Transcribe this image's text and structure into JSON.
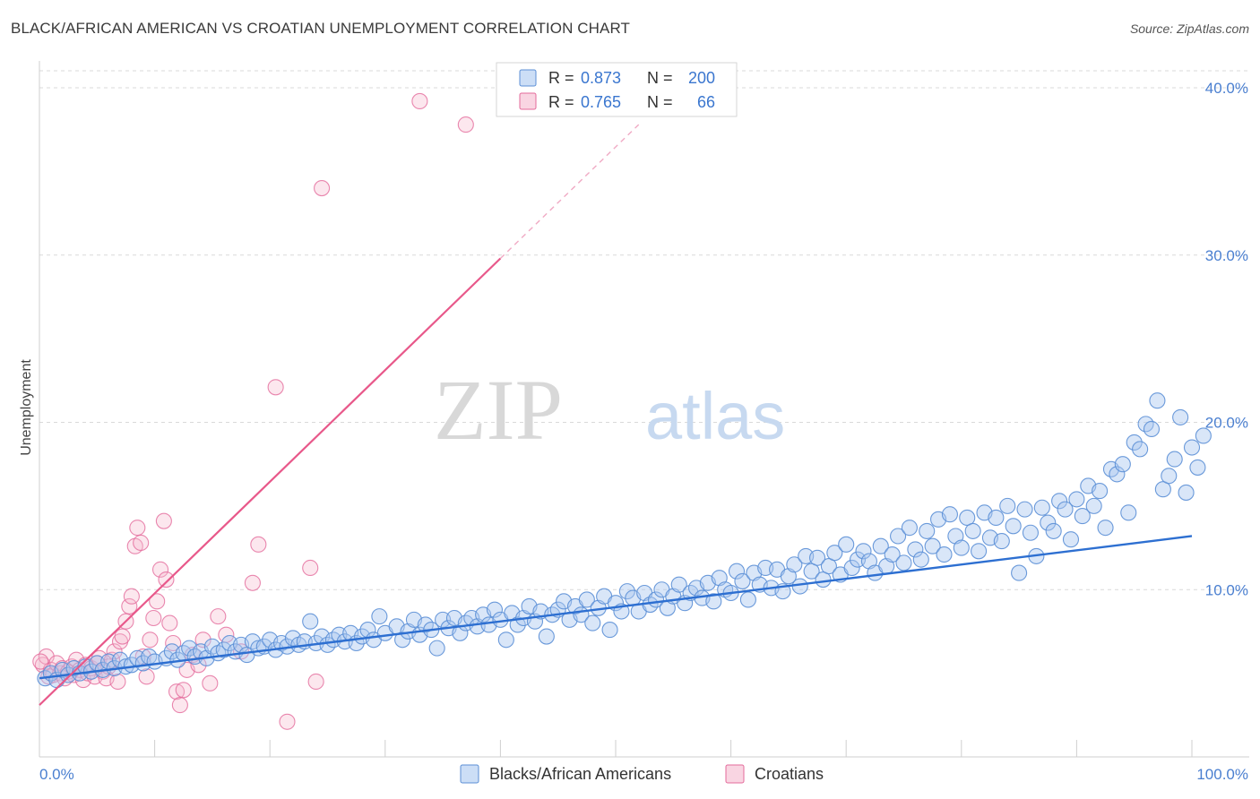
{
  "header": {
    "title": "BLACK/AFRICAN AMERICAN VS CROATIAN UNEMPLOYMENT CORRELATION CHART",
    "source": "Source: ZipAtlas.com"
  },
  "watermark": {
    "zip": "ZIP",
    "atlas": "atlas"
  },
  "colors": {
    "blue": "#5b8fd6",
    "blue_fill": "#aac8f0",
    "blue_line": "#2d6fd1",
    "pink": "#e46a9b",
    "pink_fill": "#f5b9cf",
    "pink_line": "#e8588a",
    "tick_label": "#4a7fd0",
    "grid": "#d9d9d9"
  },
  "chart_data": {
    "type": "scatter",
    "title": "BLACK/AFRICAN AMERICAN VS CROATIAN UNEMPLOYMENT CORRELATION CHART",
    "xlabel": "",
    "ylabel": "Unemployment",
    "xlim": [
      0,
      105
    ],
    "ylim": [
      0,
      41.5
    ],
    "x_tick_labels": [
      "0.0%",
      "100.0%"
    ],
    "y_ticks": [
      10,
      20,
      30,
      40
    ],
    "y_tick_labels": [
      "10.0%",
      "20.0%",
      "30.0%",
      "40.0%"
    ],
    "legend_position": "top-center",
    "stats": [
      {
        "r_label": "R =",
        "r_value": "0.873",
        "n_label": "N =",
        "n_value": "200"
      },
      {
        "r_label": "R =",
        "r_value": "0.765",
        "n_label": "N =",
        "n_value": "66"
      }
    ],
    "series": [
      {
        "name": "Blacks/African Americans",
        "trend": {
          "x": [
            0,
            100
          ],
          "y": [
            4.7,
            13.2
          ]
        },
        "points": [
          [
            0.5,
            4.7
          ],
          [
            1,
            5.0
          ],
          [
            1.5,
            4.6
          ],
          [
            2,
            5.2
          ],
          [
            2.5,
            4.9
          ],
          [
            3,
            5.3
          ],
          [
            3.5,
            5.0
          ],
          [
            4,
            5.4
          ],
          [
            4.5,
            5.1
          ],
          [
            5,
            5.6
          ],
          [
            5.5,
            5.2
          ],
          [
            6,
            5.7
          ],
          [
            6.5,
            5.3
          ],
          [
            7,
            5.8
          ],
          [
            7.5,
            5.4
          ],
          [
            8,
            5.5
          ],
          [
            8.5,
            5.9
          ],
          [
            9,
            5.6
          ],
          [
            9.5,
            6.0
          ],
          [
            10,
            5.7
          ],
          [
            11,
            5.9
          ],
          [
            11.5,
            6.3
          ],
          [
            12,
            5.8
          ],
          [
            12.5,
            6.2
          ],
          [
            13,
            6.5
          ],
          [
            13.5,
            6.0
          ],
          [
            14,
            6.3
          ],
          [
            14.5,
            5.9
          ],
          [
            15,
            6.6
          ],
          [
            15.5,
            6.2
          ],
          [
            16,
            6.4
          ],
          [
            16.5,
            6.8
          ],
          [
            17,
            6.3
          ],
          [
            17.5,
            6.7
          ],
          [
            18,
            6.1
          ],
          [
            18.5,
            6.9
          ],
          [
            19,
            6.5
          ],
          [
            19.5,
            6.6
          ],
          [
            20,
            7.0
          ],
          [
            20.5,
            6.4
          ],
          [
            21,
            6.8
          ],
          [
            21.5,
            6.6
          ],
          [
            22,
            7.1
          ],
          [
            22.5,
            6.7
          ],
          [
            23,
            6.9
          ],
          [
            23.5,
            8.1
          ],
          [
            24,
            6.8
          ],
          [
            24.5,
            7.2
          ],
          [
            25,
            6.7
          ],
          [
            25.5,
            7.0
          ],
          [
            26,
            7.3
          ],
          [
            26.5,
            6.9
          ],
          [
            27,
            7.4
          ],
          [
            27.5,
            6.8
          ],
          [
            28,
            7.2
          ],
          [
            28.5,
            7.6
          ],
          [
            29,
            7.0
          ],
          [
            29.5,
            8.4
          ],
          [
            30,
            7.4
          ],
          [
            31,
            7.8
          ],
          [
            31.5,
            7.0
          ],
          [
            32,
            7.5
          ],
          [
            32.5,
            8.2
          ],
          [
            33,
            7.3
          ],
          [
            33.5,
            7.9
          ],
          [
            34,
            7.6
          ],
          [
            34.5,
            6.5
          ],
          [
            35,
            8.2
          ],
          [
            35.5,
            7.7
          ],
          [
            36,
            8.3
          ],
          [
            36.5,
            7.4
          ],
          [
            37,
            8.0
          ],
          [
            37.5,
            8.3
          ],
          [
            38,
            7.8
          ],
          [
            38.5,
            8.5
          ],
          [
            39,
            7.9
          ],
          [
            39.5,
            8.8
          ],
          [
            40,
            8.2
          ],
          [
            40.5,
            7.0
          ],
          [
            41,
            8.6
          ],
          [
            41.5,
            7.9
          ],
          [
            42,
            8.3
          ],
          [
            42.5,
            9.0
          ],
          [
            43,
            8.1
          ],
          [
            43.5,
            8.7
          ],
          [
            44,
            7.2
          ],
          [
            44.5,
            8.5
          ],
          [
            45,
            8.8
          ],
          [
            45.5,
            9.3
          ],
          [
            46,
            8.2
          ],
          [
            46.5,
            9.0
          ],
          [
            47,
            8.5
          ],
          [
            47.5,
            9.4
          ],
          [
            48,
            8.0
          ],
          [
            48.5,
            8.9
          ],
          [
            49,
            9.6
          ],
          [
            49.5,
            7.6
          ],
          [
            50,
            9.2
          ],
          [
            50.5,
            8.7
          ],
          [
            51,
            9.9
          ],
          [
            51.5,
            9.5
          ],
          [
            52,
            8.7
          ],
          [
            52.5,
            9.8
          ],
          [
            53,
            9.1
          ],
          [
            53.5,
            9.4
          ],
          [
            54,
            10.0
          ],
          [
            54.5,
            8.9
          ],
          [
            55,
            9.6
          ],
          [
            55.5,
            10.3
          ],
          [
            56,
            9.2
          ],
          [
            56.5,
            9.8
          ],
          [
            57,
            10.1
          ],
          [
            57.5,
            9.5
          ],
          [
            58,
            10.4
          ],
          [
            58.5,
            9.3
          ],
          [
            59,
            10.7
          ],
          [
            59.5,
            10.0
          ],
          [
            60,
            9.8
          ],
          [
            60.5,
            11.1
          ],
          [
            61,
            10.5
          ],
          [
            61.5,
            9.4
          ],
          [
            62,
            11.0
          ],
          [
            62.5,
            10.3
          ],
          [
            63,
            11.3
          ],
          [
            63.5,
            10.1
          ],
          [
            64,
            11.2
          ],
          [
            64.5,
            9.9
          ],
          [
            65,
            10.8
          ],
          [
            65.5,
            11.5
          ],
          [
            66,
            10.2
          ],
          [
            66.5,
            12.0
          ],
          [
            67,
            11.1
          ],
          [
            67.5,
            11.9
          ],
          [
            68,
            10.6
          ],
          [
            68.5,
            11.4
          ],
          [
            69,
            12.2
          ],
          [
            69.5,
            10.9
          ],
          [
            70,
            12.7
          ],
          [
            70.5,
            11.3
          ],
          [
            71,
            11.8
          ],
          [
            71.5,
            12.3
          ],
          [
            72,
            11.7
          ],
          [
            72.5,
            11.0
          ],
          [
            73,
            12.6
          ],
          [
            73.5,
            11.4
          ],
          [
            74,
            12.1
          ],
          [
            74.5,
            13.2
          ],
          [
            75,
            11.6
          ],
          [
            75.5,
            13.7
          ],
          [
            76,
            12.4
          ],
          [
            76.5,
            11.8
          ],
          [
            77,
            13.5
          ],
          [
            77.5,
            12.6
          ],
          [
            78,
            14.2
          ],
          [
            78.5,
            12.1
          ],
          [
            79,
            14.5
          ],
          [
            79.5,
            13.2
          ],
          [
            80,
            12.5
          ],
          [
            80.5,
            14.3
          ],
          [
            81,
            13.5
          ],
          [
            81.5,
            12.3
          ],
          [
            82,
            14.6
          ],
          [
            82.5,
            13.1
          ],
          [
            83,
            14.3
          ],
          [
            83.5,
            12.9
          ],
          [
            84,
            15.0
          ],
          [
            84.5,
            13.8
          ],
          [
            85,
            11.0
          ],
          [
            85.5,
            14.8
          ],
          [
            86,
            13.4
          ],
          [
            86.5,
            12.0
          ],
          [
            87,
            14.9
          ],
          [
            87.5,
            14.0
          ],
          [
            88,
            13.5
          ],
          [
            88.5,
            15.3
          ],
          [
            89,
            14.8
          ],
          [
            89.5,
            13.0
          ],
          [
            90,
            15.4
          ],
          [
            90.5,
            14.4
          ],
          [
            91,
            16.2
          ],
          [
            91.5,
            15.0
          ],
          [
            92,
            15.9
          ],
          [
            92.5,
            13.7
          ],
          [
            93,
            17.2
          ],
          [
            93.5,
            16.9
          ],
          [
            94,
            17.5
          ],
          [
            94.5,
            14.6
          ],
          [
            95,
            18.8
          ],
          [
            95.5,
            18.4
          ],
          [
            96,
            19.9
          ],
          [
            96.5,
            19.6
          ],
          [
            97,
            21.3
          ],
          [
            97.5,
            16.0
          ],
          [
            98,
            16.8
          ],
          [
            98.5,
            17.8
          ],
          [
            99,
            20.3
          ],
          [
            99.5,
            15.8
          ],
          [
            100,
            18.5
          ],
          [
            100.5,
            17.3
          ],
          [
            101,
            19.2
          ]
        ]
      },
      {
        "name": "Croatians",
        "trend": {
          "x": [
            0,
            40
          ],
          "y": [
            3.1,
            29.8
          ]
        },
        "trend_dashed": {
          "x": [
            40,
            52
          ],
          "y": [
            29.8,
            37.8
          ]
        },
        "points": [
          [
            0.3,
            5.5
          ],
          [
            0.6,
            6.0
          ],
          [
            0.8,
            4.8
          ],
          [
            1,
            5.2
          ],
          [
            1.2,
            4.9
          ],
          [
            1.5,
            5.6
          ],
          [
            1.8,
            5.0
          ],
          [
            2,
            5.3
          ],
          [
            2.2,
            4.7
          ],
          [
            2.5,
            5.1
          ],
          [
            2.8,
            5.4
          ],
          [
            3,
            4.9
          ],
          [
            3.2,
            5.8
          ],
          [
            3.5,
            5.2
          ],
          [
            3.8,
            4.6
          ],
          [
            4,
            5.5
          ],
          [
            4.2,
            5.0
          ],
          [
            4.5,
            5.3
          ],
          [
            4.8,
            4.8
          ],
          [
            5,
            5.6
          ],
          [
            5.2,
            5.9
          ],
          [
            5.5,
            5.1
          ],
          [
            5.8,
            4.7
          ],
          [
            6,
            5.4
          ],
          [
            6.3,
            5.8
          ],
          [
            6.5,
            6.3
          ],
          [
            6.8,
            4.5
          ],
          [
            7,
            6.9
          ],
          [
            7.2,
            7.2
          ],
          [
            7.5,
            8.1
          ],
          [
            7.8,
            9.0
          ],
          [
            8,
            9.6
          ],
          [
            8.3,
            12.6
          ],
          [
            8.5,
            13.7
          ],
          [
            8.8,
            12.8
          ],
          [
            9,
            6.0
          ],
          [
            9.3,
            4.8
          ],
          [
            9.6,
            7.0
          ],
          [
            9.9,
            8.3
          ],
          [
            10.2,
            9.3
          ],
          [
            10.5,
            11.2
          ],
          [
            10.8,
            14.1
          ],
          [
            11,
            10.6
          ],
          [
            11.3,
            8.0
          ],
          [
            11.6,
            6.8
          ],
          [
            11.9,
            3.9
          ],
          [
            12.2,
            3.1
          ],
          [
            12.5,
            4.0
          ],
          [
            12.8,
            5.2
          ],
          [
            13.3,
            6.1
          ],
          [
            13.8,
            5.5
          ],
          [
            14.2,
            7.0
          ],
          [
            14.8,
            4.4
          ],
          [
            15.5,
            8.4
          ],
          [
            16.2,
            7.3
          ],
          [
            17.5,
            6.3
          ],
          [
            18.5,
            10.4
          ],
          [
            19,
            12.7
          ],
          [
            20.5,
            22.1
          ],
          [
            21.5,
            2.1
          ],
          [
            23.5,
            11.3
          ],
          [
            24,
            4.5
          ],
          [
            24.5,
            34.0
          ],
          [
            33,
            39.2
          ],
          [
            37,
            37.8
          ],
          [
            0.1,
            5.7
          ]
        ]
      }
    ]
  }
}
